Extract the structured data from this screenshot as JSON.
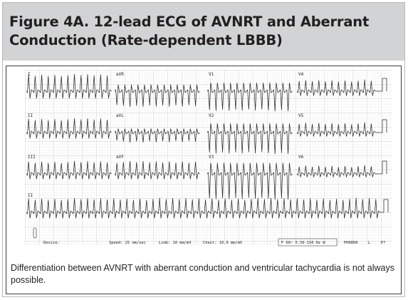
{
  "header": {
    "title": "Figure 4A. 12-lead ECG of AVNRT and Aberrant Conduction (Rate-dependent LBBB)"
  },
  "ecg": {
    "lead_labels": [
      "I",
      "aVR",
      "V1",
      "V4",
      "II",
      "aVL",
      "V2",
      "V5",
      "III",
      "aVF",
      "V3",
      "V6",
      "II"
    ],
    "footer": {
      "device": "Device:",
      "speed": "Speed: 25 mm/sec",
      "limb": "Limb: 10 mm/mV",
      "chest": "Chest: 10.0 mm/mV",
      "filter": "F 60~ 0.50-150 Hz W",
      "model": "PH080A",
      "lead_code": "L",
      "page_code": "P?"
    }
  },
  "caption": {
    "text": "Differentiation between AVNRT with aberrant conduction and ventricular tachycardia is not always possible."
  },
  "colors": {
    "header_band": "#d1d3d4",
    "grid_minor": "#e4e4e4",
    "grid_major": "#c2c2c2",
    "trace": "#2a2a2a"
  }
}
